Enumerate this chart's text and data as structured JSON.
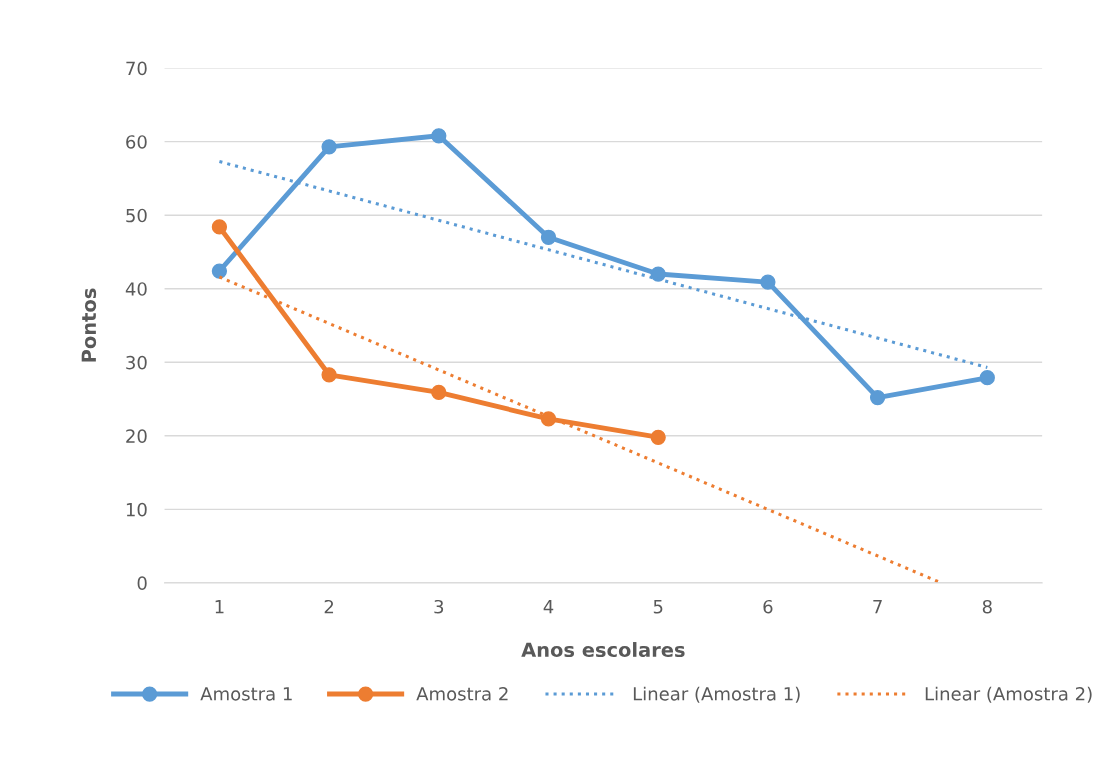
{
  "chart_data": {
    "type": "line",
    "xlabel": "Anos escolares",
    "ylabel": "Pontos",
    "xlim": [
      0.5,
      8.5
    ],
    "xticks": [
      1,
      2,
      3,
      4,
      5,
      6,
      7,
      8
    ],
    "ylim": [
      0,
      70
    ],
    "yticks": [
      0,
      10,
      20,
      30,
      40,
      50,
      60,
      70
    ],
    "grid": "y",
    "legend": "bottom",
    "series": [
      {
        "name": "Amostra 1",
        "color": "#5b9bd5",
        "marker": "circle",
        "line_style": "solid",
        "x": [
          1,
          2,
          3,
          4,
          5,
          6,
          7,
          8
        ],
        "values": [
          42.4,
          59.3,
          60.8,
          47.0,
          42.0,
          40.9,
          25.2,
          27.9
        ]
      },
      {
        "name": "Amostra 2",
        "color": "#ed7d31",
        "marker": "circle",
        "line_style": "solid",
        "x": [
          1,
          2,
          3,
          4,
          5
        ],
        "values": [
          48.4,
          28.3,
          25.9,
          22.3,
          19.8
        ]
      },
      {
        "name": "Linear (Amostra 1)",
        "color": "#5b9bd5",
        "marker": "none",
        "line_style": "dotted",
        "x": [
          1,
          8
        ],
        "values": [
          57.3,
          29.3
        ]
      },
      {
        "name": "Linear (Amostra 2)",
        "color": "#ed7d31",
        "marker": "none",
        "line_style": "dotted",
        "x": [
          1,
          7.58
        ],
        "values": [
          41.6,
          0
        ]
      }
    ]
  }
}
